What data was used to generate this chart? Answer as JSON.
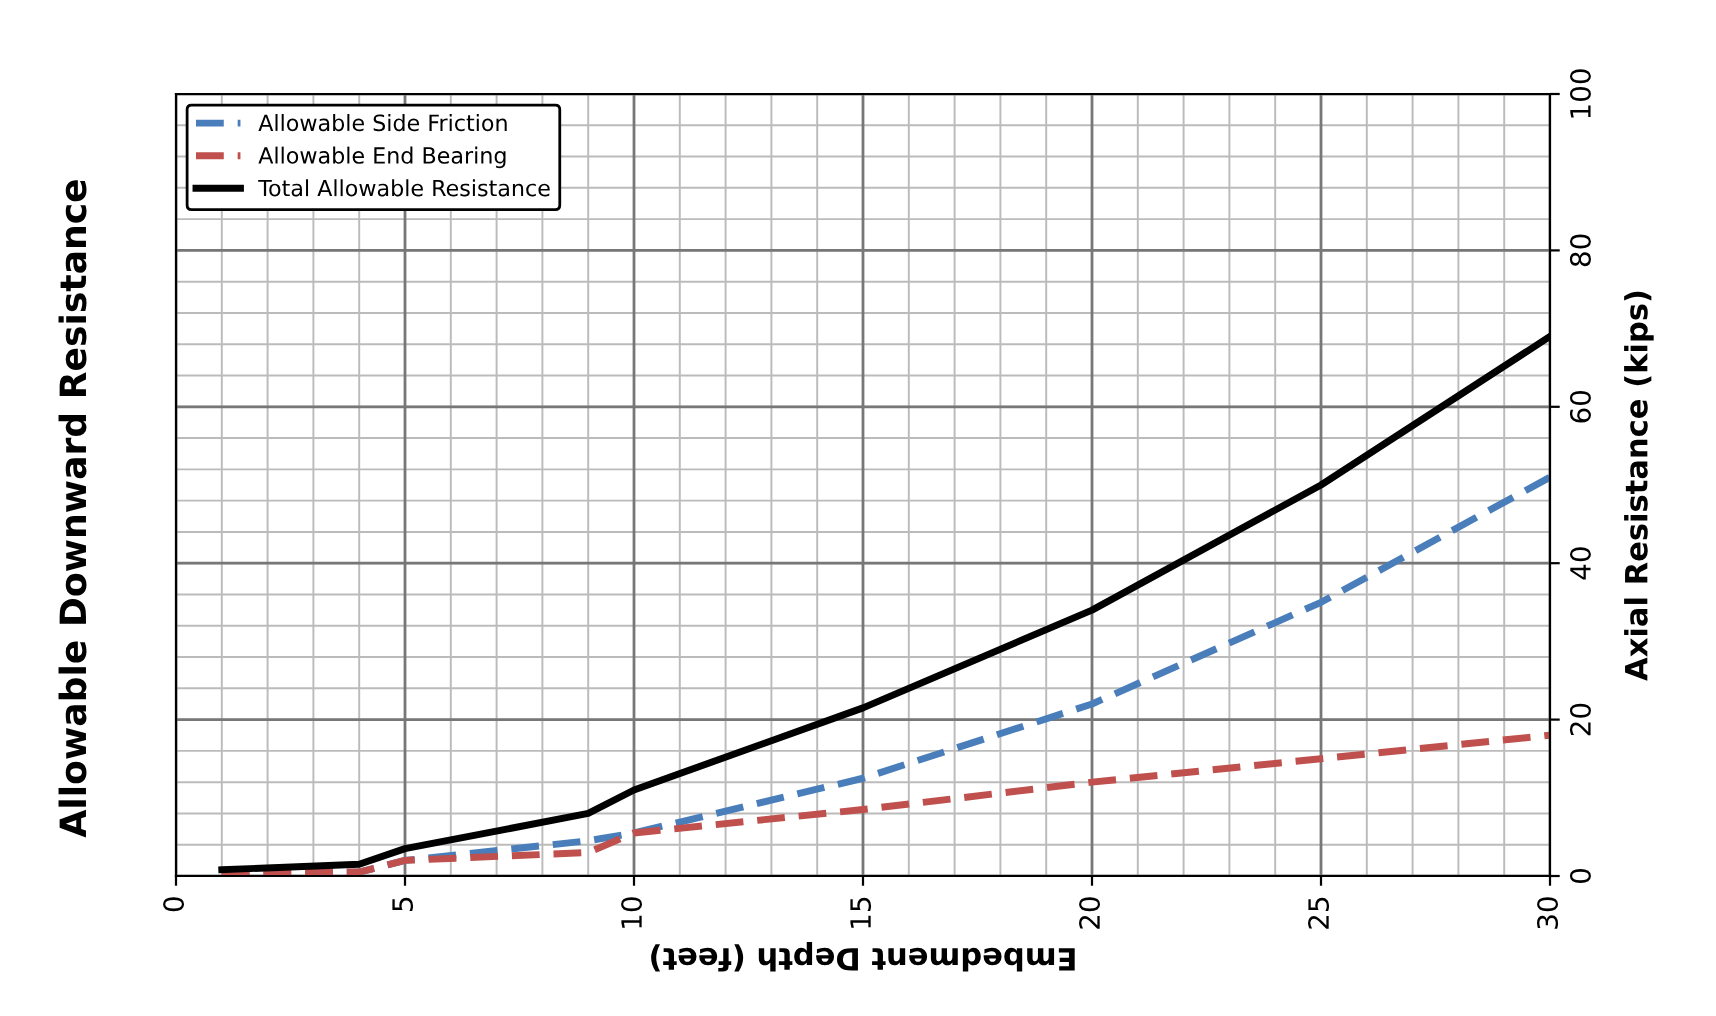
{
  "chart_data": {
    "type": "line",
    "title": "Allowable Downward Resistance",
    "xlabel": "Embedment Depth (feet)",
    "ylabel": "Axial Resistance (kips)",
    "x": [
      1,
      4,
      5,
      9,
      10,
      15,
      20,
      25,
      30
    ],
    "series": [
      {
        "name": "Allowable Side Friction",
        "color": "#4a7ebb",
        "line_style": "dashed",
        "values": [
          0,
          0.5,
          2,
          4.5,
          5.5,
          12.5,
          22,
          35,
          51
        ]
      },
      {
        "name": "Allowable End Bearing",
        "color": "#c0504d",
        "line_style": "dashed",
        "values": [
          0.5,
          0.5,
          2,
          3,
          5.5,
          8.5,
          12,
          15,
          18
        ]
      },
      {
        "name": "Total Allowable Resistance",
        "color": "#000000",
        "line_style": "solid",
        "values": [
          0.8,
          1.5,
          3.5,
          8,
          11,
          21.5,
          34,
          50,
          69
        ]
      }
    ],
    "xlim": [
      0,
      30
    ],
    "xticks": [
      0,
      5,
      10,
      15,
      20,
      25,
      30
    ],
    "ylim": [
      0,
      100
    ],
    "yticks": [
      0,
      20,
      40,
      60,
      80,
      100
    ],
    "grid": true,
    "legend": "top left",
    "marker": "none"
  }
}
